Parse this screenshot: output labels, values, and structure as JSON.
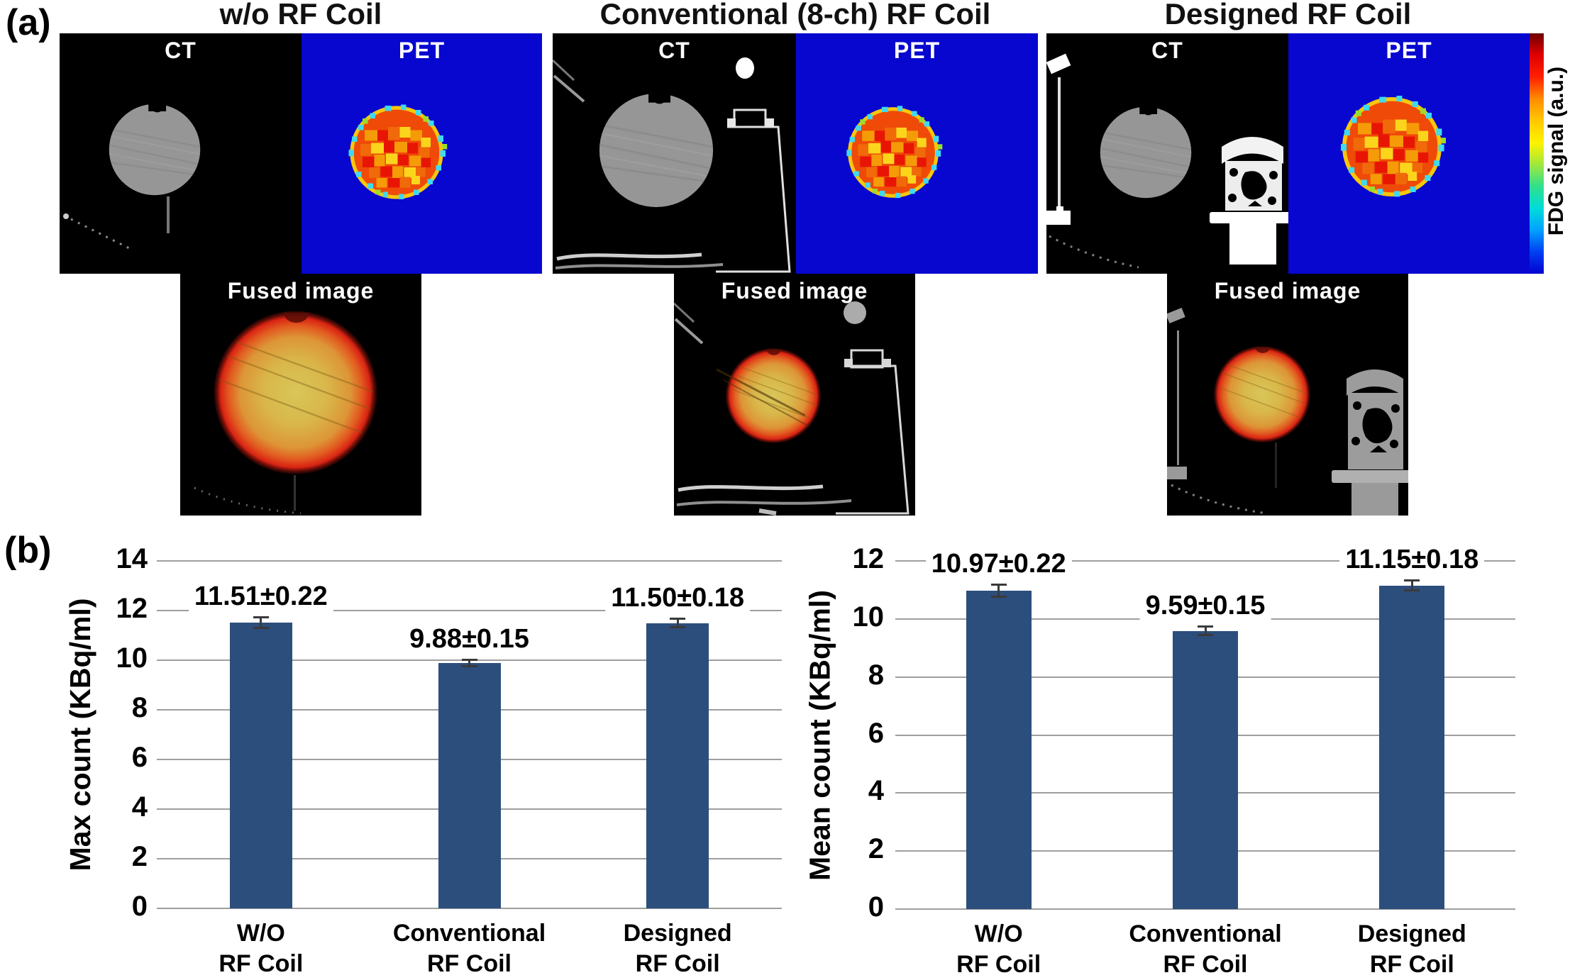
{
  "figure_labels": {
    "panel_a": "(a)",
    "panel_b": "(b)"
  },
  "panel_a": {
    "groups": [
      {
        "title": "w/o RF Coil",
        "ct_label": "CT",
        "pet_label": "PET",
        "fused_label": "Fused image"
      },
      {
        "title": "Conventional (8-ch) RF Coil",
        "ct_label": "CT",
        "pet_label": "PET",
        "fused_label": "Fused image"
      },
      {
        "title": "Designed RF Coil",
        "ct_label": "CT",
        "pet_label": "PET",
        "fused_label": "Fused image"
      }
    ],
    "colorbar_label": "FDG signal (a.u.)"
  },
  "colors": {
    "bar": "#2C4E7C",
    "pet_background": "#0707D0",
    "gridline": "#9E9E9E",
    "error_bar": "#3A3A3A",
    "colorbar_gradient": [
      "#6E0000",
      "#E00000",
      "#FF2000",
      "#FF8C00",
      "#FFC800",
      "#FFF200",
      "#A0E83C",
      "#30E08C",
      "#00DCD8",
      "#00A2FF",
      "#0040F2",
      "#0202D0"
    ]
  },
  "chart_data": [
    {
      "type": "bar",
      "ylabel": "Max count (KBq/ml)",
      "categories": [
        [
          "W/O",
          "RF Coil"
        ],
        [
          "Conventional",
          "RF Coil"
        ],
        [
          "Designed",
          "RF Coil"
        ]
      ],
      "values": [
        11.51,
        9.88,
        11.5
      ],
      "errors": [
        0.22,
        0.15,
        0.18
      ],
      "value_labels": [
        "11.51±0.22",
        "9.88±0.15",
        "11.50±0.18"
      ],
      "ylim": [
        0,
        14
      ],
      "ytick_step": 2,
      "grid": true,
      "legend": "none",
      "bar_color": "#2C4E7C"
    },
    {
      "type": "bar",
      "ylabel": "Mean count (KBq/ml)",
      "categories": [
        [
          "W/O",
          "RF Coil"
        ],
        [
          "Conventional",
          "RF Coil"
        ],
        [
          "Designed",
          "RF Coil"
        ]
      ],
      "values": [
        10.97,
        9.59,
        11.15
      ],
      "errors": [
        0.22,
        0.15,
        0.18
      ],
      "value_labels": [
        "10.97±0.22",
        "9.59±0.15",
        "11.15±0.18"
      ],
      "ylim": [
        0,
        12
      ],
      "ytick_step": 2,
      "grid": true,
      "legend": "none",
      "bar_color": "#2C4E7C"
    }
  ]
}
